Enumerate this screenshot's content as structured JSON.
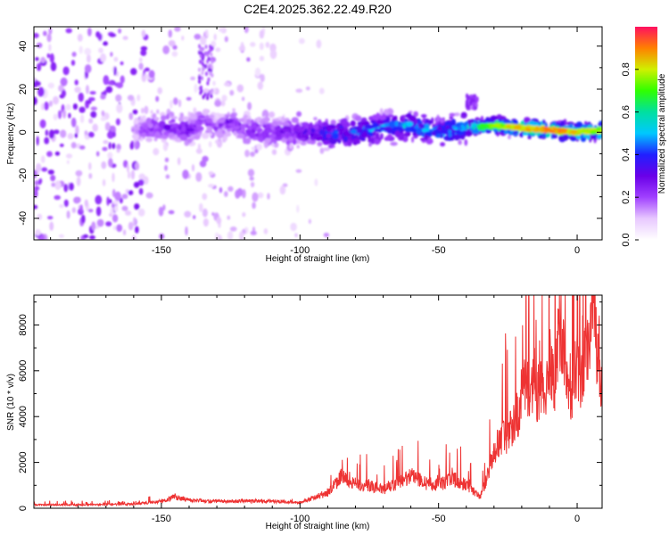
{
  "title": "C2E4.2025.362.22.49.R20",
  "chart_data": [
    {
      "type": "heatmap",
      "xlabel": "Height of straight line (km)",
      "ylabel": "Frequency (Hz)",
      "xlim": [
        -196,
        9
      ],
      "ylim": [
        -50,
        49
      ],
      "xticks": [
        -150,
        -100,
        -50,
        0
      ],
      "yticks": [
        -40,
        -20,
        0,
        20,
        40
      ],
      "colorbar": {
        "label": "Normalized spectral amplitude",
        "range": [
          0,
          1
        ],
        "ticks": [
          0.0,
          0.2,
          0.4,
          0.6,
          0.8
        ],
        "tick_labels": [
          "0.0",
          "0.2",
          "0.4",
          "0.6",
          "0.8"
        ],
        "colormap": [
          "#ffffff",
          "#e8c8ff",
          "#a040ff",
          "#6a00e8",
          "#2020ff",
          "#00c8ff",
          "#00e0a0",
          "#30ff00",
          "#d0f000",
          "#ff8000",
          "#ff1060"
        ]
      },
      "ridge": {
        "x": [
          -196,
          -160,
          -150,
          -140,
          -135,
          -130,
          -125,
          -120,
          -110,
          -100,
          -90,
          -80,
          -70,
          -60,
          -50,
          -40,
          -30,
          -20,
          -10,
          0,
          9
        ],
        "y": [
          0,
          1,
          3,
          1,
          5,
          2,
          5,
          1,
          0,
          0,
          -1,
          0,
          2,
          3,
          0,
          2,
          3,
          2,
          1,
          0,
          1
        ],
        "amplitude": [
          0.1,
          0.2,
          0.28,
          0.3,
          0.26,
          0.22,
          0.3,
          0.28,
          0.3,
          0.34,
          0.42,
          0.48,
          0.52,
          0.5,
          0.52,
          0.56,
          0.72,
          0.82,
          0.85,
          0.8,
          0.75
        ]
      },
      "grid": false
    },
    {
      "type": "line",
      "xlabel": "Height of straight line (km)",
      "ylabel": "SNR (10 * v/v)",
      "xlim": [
        -196,
        9
      ],
      "ylim": [
        0,
        9300
      ],
      "xticks": [
        -150,
        -100,
        -50,
        0
      ],
      "yticks": [
        0,
        2000,
        4000,
        6000,
        8000
      ],
      "color": "#ee3333",
      "series": [
        {
          "x": [
            -196,
            -180,
            -160,
            -150,
            -145,
            -140,
            -130,
            -120,
            -110,
            -100,
            -95,
            -90,
            -85,
            -80,
            -75,
            -70,
            -65,
            -60,
            -55,
            -50,
            -45,
            -40,
            -35,
            -32,
            -30,
            -28,
            -25,
            -22,
            -20,
            -18,
            -15,
            -12,
            -10,
            -8,
            -6,
            -5,
            -4,
            -2,
            0,
            2,
            4,
            6,
            8,
            9
          ],
          "y": [
            150,
            150,
            180,
            300,
            500,
            350,
            300,
            320,
            300,
            250,
            450,
            700,
            1400,
            1000,
            1000,
            800,
            1100,
            1400,
            1100,
            1000,
            1300,
            1000,
            500,
            1500,
            2300,
            3000,
            3300,
            3800,
            5000,
            5300,
            5200,
            5000,
            6200,
            5800,
            8000,
            6800,
            5600,
            5300,
            6200,
            5800,
            6800,
            7800,
            6700,
            5000
          ]
        }
      ],
      "grid": false
    }
  ]
}
